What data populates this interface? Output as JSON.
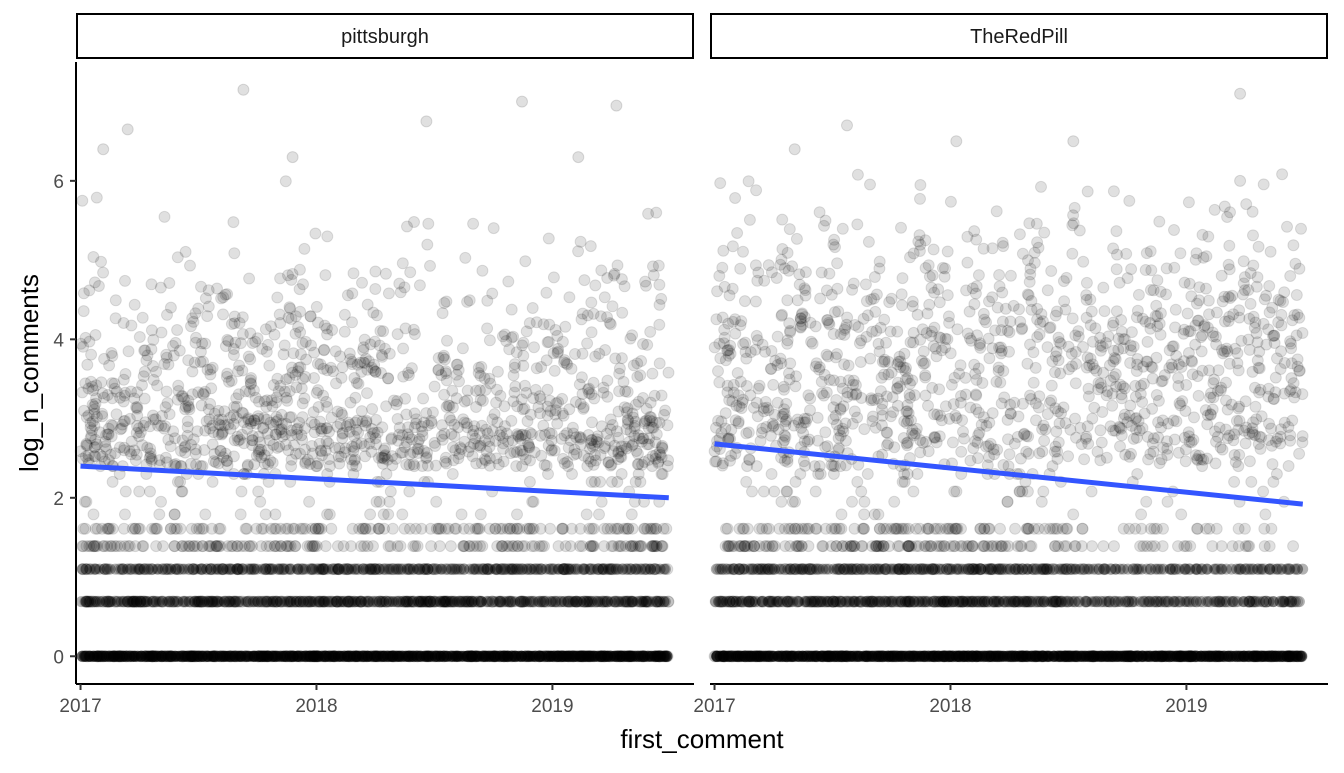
{
  "chart_data": {
    "type": "scatter",
    "xlabel": "first_comment",
    "ylabel": "log_n_comments",
    "x_ticks": [
      "2017",
      "2018",
      "2019"
    ],
    "y_ticks": [
      "0",
      "2",
      "4",
      "6"
    ],
    "xlim": [
      "2016-12-25",
      "2019-08-08"
    ],
    "ylim": [
      -0.35,
      7.5
    ],
    "grid": false,
    "legend": "none",
    "point_color": "#000000",
    "point_alpha": 0.12,
    "trend_color": "#3355ff",
    "panels": [
      {
        "facet": "pittsburgh",
        "x_range": [
          "2017-01-01",
          "2019-06-30"
        ],
        "trend": {
          "x": [
            "2017-01-01",
            "2019-06-30"
          ],
          "y": [
            2.4,
            2.0
          ]
        },
        "discrete_levels": [
          0,
          0.69,
          1.1,
          1.39,
          1.61,
          1.79,
          1.95,
          2.08,
          2.2,
          2.3,
          2.4
        ],
        "outliers": [
          {
            "x": "2017-03-15",
            "y": 6.65
          },
          {
            "x": "2017-09-10",
            "y": 7.15
          },
          {
            "x": "2017-11-25",
            "y": 6.3
          },
          {
            "x": "2018-06-20",
            "y": 6.75
          },
          {
            "x": "2018-11-15",
            "y": 7.0
          },
          {
            "x": "2019-04-10",
            "y": 6.95
          },
          {
            "x": "2017-02-05",
            "y": 6.4
          },
          {
            "x": "2019-02-10",
            "y": 6.3
          }
        ]
      },
      {
        "facet": "TheRedPill",
        "x_range": [
          "2017-01-01",
          "2019-06-30"
        ],
        "trend": {
          "x": [
            "2017-01-01",
            "2019-06-30"
          ],
          "y": [
            2.68,
            1.92
          ]
        },
        "discrete_levels": [
          0,
          0.69,
          1.1,
          1.39,
          1.61,
          1.79,
          1.95,
          2.08,
          2.2,
          2.3,
          2.4
        ],
        "gap_after": "2018-08-01",
        "outliers": [
          {
            "x": "2017-07-25",
            "y": 6.7
          },
          {
            "x": "2017-05-05",
            "y": 6.4
          },
          {
            "x": "2018-01-10",
            "y": 6.5
          },
          {
            "x": "2018-07-10",
            "y": 6.5
          },
          {
            "x": "2019-03-25",
            "y": 7.1
          },
          {
            "x": "2019-03-25",
            "y": 6.0
          }
        ]
      }
    ]
  }
}
